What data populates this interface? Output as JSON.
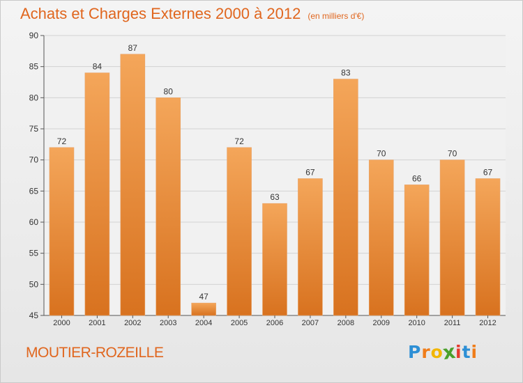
{
  "title": {
    "main": "Achats et Charges Externes 2000 à 2012",
    "sub": "(en milliers d'€)"
  },
  "commune": "MOUTIER-ROZEILLE",
  "logo": {
    "letters": [
      {
        "ch": "P",
        "color": "#2d8fd5"
      },
      {
        "ch": "r",
        "color": "#f07d1a"
      },
      {
        "ch": "o",
        "color": "#f2b600"
      },
      {
        "ch": "x",
        "color": "#4aa02c"
      },
      {
        "ch": "i",
        "color": "#e63b2e"
      },
      {
        "ch": "t",
        "color": "#2d8fd5"
      },
      {
        "ch": "i",
        "color": "#f07d1a"
      }
    ]
  },
  "colors": {
    "accent": "#e0661e",
    "bar_top": "#f4a65a",
    "bar_bottom": "#d8721f",
    "grid": "#d2d2d2",
    "axis_text": "#333333"
  },
  "chart_data": {
    "type": "bar",
    "title": "Achats et Charges Externes 2000 à 2012",
    "subtitle": "(en milliers d'€)",
    "categories": [
      "2000",
      "2001",
      "2002",
      "2003",
      "2004",
      "2005",
      "2006",
      "2007",
      "2008",
      "2009",
      "2010",
      "2011",
      "2012"
    ],
    "values": [
      72,
      84,
      87,
      80,
      47,
      72,
      63,
      67,
      83,
      70,
      66,
      70,
      67
    ],
    "yticks": [
      45,
      50,
      55,
      60,
      65,
      70,
      75,
      80,
      85,
      90
    ],
    "ylim": [
      45,
      90
    ],
    "grid": true,
    "data_labels": true
  }
}
